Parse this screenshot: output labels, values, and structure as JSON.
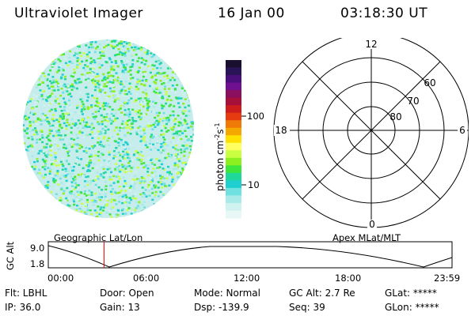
{
  "header": {
    "instrument": "Ultraviolet Imager",
    "date": "16 Jan 00",
    "time": "03:18:30 UT"
  },
  "colorbar": {
    "label": "photon cm",
    "label_sup1": "-2",
    "label_s": "s",
    "label_sup2": "-1",
    "ticks": [
      "100",
      "10"
    ],
    "colors": [
      "#1a0f2e",
      "#2a1458",
      "#4a0f7a",
      "#6e1090",
      "#8a0f5e",
      "#a8103c",
      "#cc1c1c",
      "#e63a10",
      "#f07a08",
      "#f5a800",
      "#ffe000",
      "#ffff60",
      "#c8ff40",
      "#8cf020",
      "#3ce63c",
      "#20d89a",
      "#20d0d0",
      "#70e0e0",
      "#a8eae8",
      "#d0f2f0",
      "#e8f8f6"
    ]
  },
  "polar_plot": {
    "mlt_labels": [
      "12",
      "18",
      "6",
      "0"
    ],
    "lat_labels": [
      "60",
      "70",
      "80"
    ]
  },
  "timeline": {
    "left_caption": "Geographic Lat/Lon",
    "right_caption": "Apex MLat/MLT",
    "y_label": "GC Alt",
    "y_ticks": [
      "9.0",
      "1.8"
    ],
    "x_ticks": [
      "00:00",
      "06:00",
      "12:00",
      "18:00",
      "23:59"
    ],
    "current_time_fraction": 0.138,
    "marker_color": "#dd0000"
  },
  "info": {
    "flt": "Flt: LBHL",
    "door": "Door: Open",
    "mode": "Mode: Normal",
    "gc_alt": "GC Alt: 2.7 Re",
    "glat": "GLat: *****",
    "ip": "IP: 36.0",
    "gain": "Gain: 13",
    "dsp": "Dsp: -139.9",
    "seq": "Seq: 39",
    "glon": "GLon: *****"
  }
}
